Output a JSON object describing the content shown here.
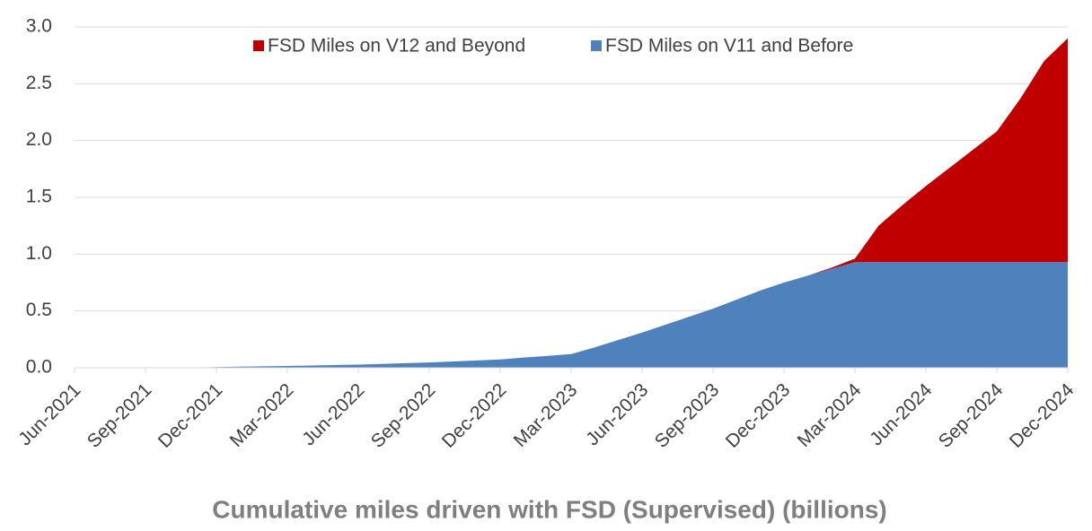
{
  "chart_data": {
    "type": "stacked-area",
    "title": "Cumulative miles driven with FSD (Supervised) (billions)",
    "categories": [
      "Jun-2021",
      null,
      null,
      "Sep-2021",
      null,
      null,
      "Dec-2021",
      null,
      null,
      "Mar-2022",
      null,
      null,
      "Jun-2022",
      null,
      null,
      "Sep-2022",
      null,
      null,
      "Dec-2022",
      null,
      null,
      "Mar-2023",
      null,
      null,
      "Jun-2023",
      null,
      null,
      "Sep-2023",
      null,
      null,
      "Dec-2023",
      null,
      null,
      "Mar-2024",
      null,
      null,
      "Jun-2024",
      null,
      null,
      "Sep-2024",
      null,
      null,
      "Dec-2024"
    ],
    "series": [
      {
        "name": "FSD Miles on V11 and Before",
        "color": "#4f81bd",
        "values": [
          0,
          0,
          0,
          0,
          0,
          0.002,
          0.006,
          0.01,
          0.013,
          0.016,
          0.02,
          0.024,
          0.028,
          0.034,
          0.04,
          0.046,
          0.055,
          0.064,
          0.073,
          0.09,
          0.105,
          0.12,
          0.18,
          0.245,
          0.31,
          0.38,
          0.45,
          0.52,
          0.6,
          0.68,
          0.75,
          0.81,
          0.87,
          0.93,
          0.93,
          0.93,
          0.93,
          0.93,
          0.93,
          0.93,
          0.93,
          0.93,
          0.93
        ]
      },
      {
        "name": "FSD Miles on V12 and Beyond",
        "color": "#c00000",
        "values": [
          0,
          0,
          0,
          0,
          0,
          0,
          0,
          0,
          0,
          0,
          0,
          0,
          0,
          0,
          0,
          0,
          0,
          0,
          0,
          0,
          0,
          0,
          0,
          0,
          0,
          0,
          0,
          0,
          0,
          0,
          0,
          0,
          0.01,
          0.03,
          0.32,
          0.5,
          0.67,
          0.83,
          0.99,
          1.15,
          1.44,
          1.77,
          1.97
        ]
      }
    ],
    "ylim": [
      0,
      3
    ],
    "yticks": [
      {
        "value": 0,
        "label": "0.0"
      },
      {
        "value": 0.5,
        "label": "0.5"
      },
      {
        "value": 1,
        "label": "1.0"
      },
      {
        "value": 1.5,
        "label": "1.5"
      },
      {
        "value": 2,
        "label": "2.0"
      },
      {
        "value": 2.5,
        "label": "2.5"
      },
      {
        "value": 3,
        "label": "3.0"
      }
    ],
    "grid": true
  }
}
